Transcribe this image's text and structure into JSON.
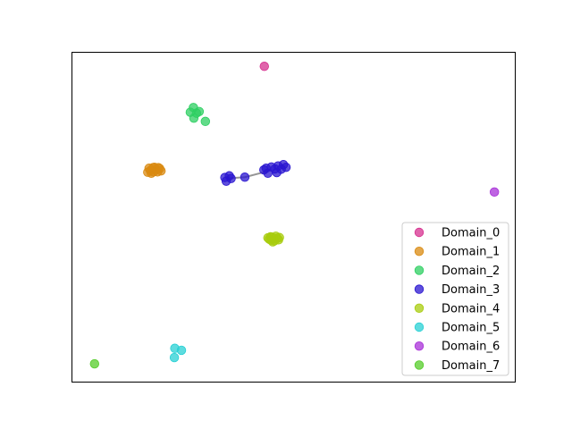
{
  "chart_data": {
    "type": "scatter",
    "title": "",
    "xlabel": "",
    "ylabel": "",
    "xlim": [
      0,
      100
    ],
    "ylim": [
      0,
      100
    ],
    "grid": false,
    "axis_ticks": false,
    "legend_placement": "lower-right",
    "point_alpha": 0.75,
    "series": [
      {
        "name": "Domain_0",
        "color": "#d6308f",
        "points": [
          [
            43.5,
            95.6
          ]
        ]
      },
      {
        "name": "Domain_1",
        "color": "#d98a10",
        "points": [
          [
            17.8,
            64.0
          ],
          [
            18.4,
            64.9
          ],
          [
            19.0,
            64.3
          ],
          [
            19.6,
            64.9
          ],
          [
            18.0,
            63.2
          ],
          [
            19.4,
            63.6
          ],
          [
            17.2,
            63.5
          ],
          [
            20.2,
            63.9
          ],
          [
            18.7,
            65.0
          ],
          [
            18.5,
            63.6
          ],
          [
            19.9,
            64.6
          ],
          [
            17.5,
            64.7
          ]
        ]
      },
      {
        "name": "Domain_2",
        "color": "#2ecf62",
        "points": [
          [
            26.8,
            81.7
          ],
          [
            27.5,
            83.1
          ],
          [
            28.2,
            81.4
          ],
          [
            28.8,
            81.9
          ],
          [
            27.6,
            79.9
          ],
          [
            30.2,
            78.9
          ]
        ]
      },
      {
        "name": "Domain_3",
        "color": "#2a16d0",
        "points": [
          [
            34.6,
            61.9
          ],
          [
            35.6,
            62.4
          ],
          [
            34.9,
            60.8
          ],
          [
            36.0,
            61.6
          ],
          [
            39.1,
            62.0
          ],
          [
            43.4,
            64.2
          ],
          [
            44.3,
            63.2
          ],
          [
            45.1,
            65.1
          ],
          [
            45.9,
            64.5
          ],
          [
            46.3,
            63.4
          ],
          [
            47.3,
            64.4
          ],
          [
            47.8,
            65.8
          ],
          [
            48.4,
            65.0
          ],
          [
            43.9,
            64.7
          ],
          [
            46.6,
            65.4
          ]
        ]
      },
      {
        "name": "Domain_4",
        "color": "#a8cc0e",
        "points": [
          [
            44.6,
            43.2
          ],
          [
            45.2,
            43.8
          ],
          [
            45.8,
            42.7
          ],
          [
            46.4,
            43.5
          ],
          [
            45.4,
            42.4
          ],
          [
            46.1,
            44.1
          ],
          [
            44.9,
            43.9
          ],
          [
            46.7,
            43.0
          ],
          [
            45.0,
            42.9
          ],
          [
            45.6,
            43.3
          ],
          [
            44.3,
            43.6
          ],
          [
            46.9,
            43.7
          ]
        ]
      },
      {
        "name": "Domain_5",
        "color": "#28d0d4",
        "points": [
          [
            23.3,
            10.1
          ],
          [
            24.8,
            9.5
          ],
          [
            23.2,
            7.3
          ]
        ]
      },
      {
        "name": "Domain_6",
        "color": "#a830d8",
        "points": [
          [
            95.4,
            57.5
          ]
        ]
      },
      {
        "name": "Domain_7",
        "color": "#55cc2a",
        "points": [
          [
            5.2,
            5.4
          ]
        ]
      }
    ],
    "connector_line": {
      "color": "#7a7a7a",
      "points": [
        [
          35.0,
          61.6
        ],
        [
          39.1,
          62.0
        ],
        [
          43.4,
          63.5
        ]
      ]
    }
  }
}
